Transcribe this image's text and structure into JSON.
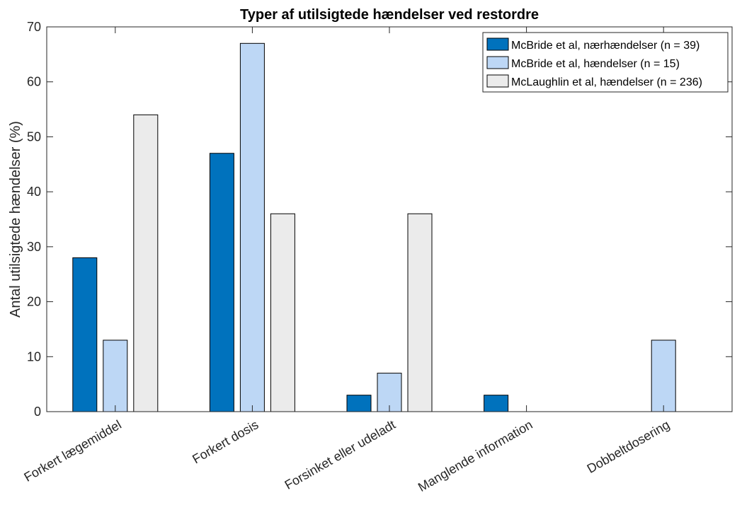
{
  "chart_data": {
    "type": "bar",
    "title": "Typer af utilsigtede hændelser ved restordre",
    "xlabel": "",
    "ylabel": "Antal utilsigtede hændelser (%)",
    "ylim": [
      0,
      70
    ],
    "yticks": [
      0,
      10,
      20,
      30,
      40,
      50,
      60,
      70
    ],
    "categories": [
      "Forkert lægemiddel",
      "Forkert dosis",
      "Forsinket eller udeladt",
      "Manglende information",
      "Dobbeltdosering"
    ],
    "series": [
      {
        "name": "McBride et al, nærhændelser (n = 39)",
        "color": "#0072bd",
        "values": [
          28,
          47,
          3,
          3,
          0
        ]
      },
      {
        "name": "McBride et al, hændelser (n = 15)",
        "color": "#bdd7f5",
        "values": [
          13,
          67,
          7,
          0,
          13
        ]
      },
      {
        "name": "McLaughlin et al, hændelser (n = 236)",
        "color": "#ebebeb",
        "values": [
          54,
          36,
          36,
          0,
          0
        ]
      }
    ],
    "legend_position": "top-right",
    "grid": false
  }
}
